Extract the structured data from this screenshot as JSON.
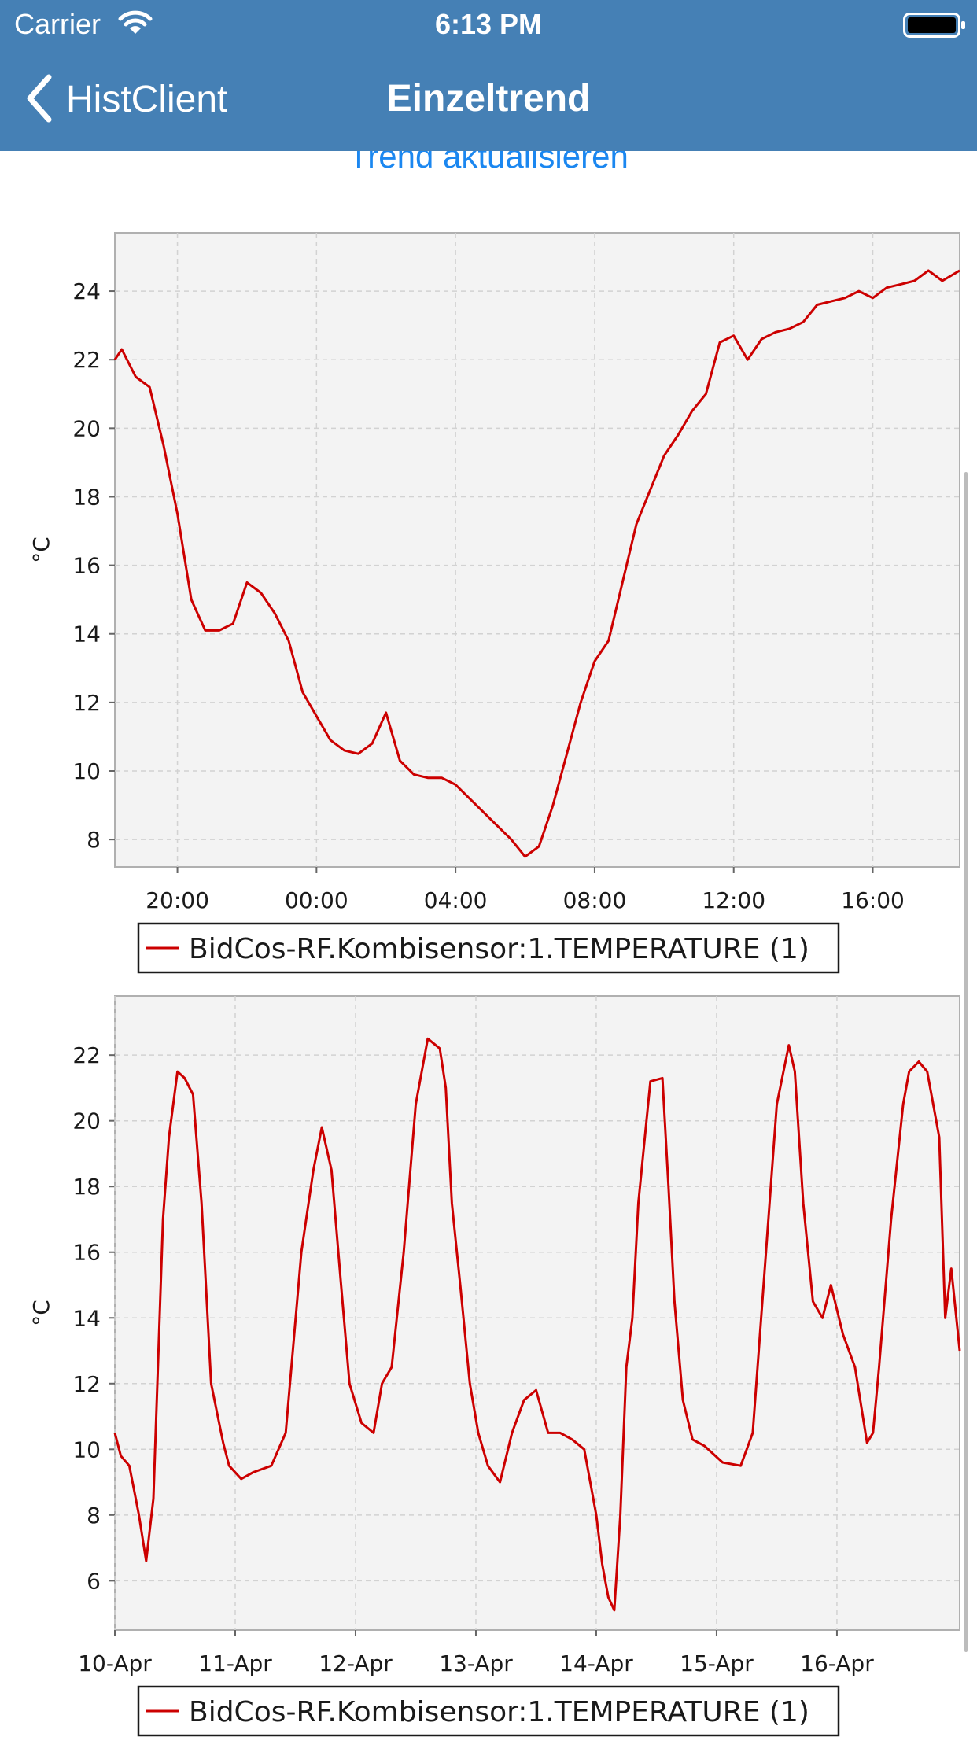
{
  "status_bar": {
    "carrier": "Carrier",
    "time": "6:13 PM"
  },
  "nav": {
    "back_label": "HistClient",
    "title": "Einzeltrend"
  },
  "refresh_label": "Trend aktualisieren",
  "colors": {
    "nav_bg": "#4580b5",
    "link": "#1b87f0",
    "series": "#cc0000",
    "plot_bg": "#f3f3f3"
  },
  "chart_data": [
    {
      "type": "line",
      "ylabel": "°C",
      "xlabel": "",
      "xtick_labels": [
        "20:00",
        "00:00",
        "04:00",
        "08:00",
        "12:00",
        "16:00"
      ],
      "xtick_hours": [
        20,
        24,
        28,
        32,
        36,
        40
      ],
      "xlim_hours": [
        18.2,
        42.5
      ],
      "ylim": [
        7.2,
        25.7
      ],
      "yticks": [
        8,
        10,
        12,
        14,
        16,
        18,
        20,
        22,
        24
      ],
      "grid": true,
      "legend": {
        "placement": "bottom",
        "label": "BidCos-RF.Kombisensor:1.TEMPERATURE (1)"
      },
      "series": [
        {
          "name": "BidCos-RF.Kombisensor:1.TEMPERATURE (1)",
          "x_hours": [
            18.2,
            18.4,
            18.8,
            19.2,
            19.6,
            20.0,
            20.4,
            20.8,
            21.2,
            21.6,
            22.0,
            22.4,
            22.8,
            23.2,
            23.6,
            24.0,
            24.4,
            24.8,
            25.2,
            25.6,
            26.0,
            26.4,
            26.6,
            26.8,
            27.2,
            27.6,
            28.0,
            28.4,
            28.8,
            29.2,
            29.6,
            30.0,
            30.4,
            30.8,
            31.2,
            31.6,
            32.0,
            32.4,
            32.8,
            33.2,
            33.6,
            34.0,
            34.4,
            34.8,
            35.2,
            35.6,
            36.0,
            36.4,
            36.8,
            37.2,
            37.6,
            38.0,
            38.4,
            38.8,
            39.2,
            39.6,
            40.0,
            40.4,
            40.8,
            41.2,
            41.6,
            42.0,
            42.5
          ],
          "values": [
            22.0,
            22.3,
            21.5,
            21.2,
            19.5,
            17.5,
            15.0,
            14.1,
            14.1,
            14.3,
            15.5,
            15.2,
            14.6,
            13.8,
            12.3,
            11.6,
            10.9,
            10.6,
            10.5,
            10.8,
            11.7,
            10.3,
            10.1,
            9.9,
            9.8,
            9.8,
            9.6,
            9.2,
            8.8,
            8.4,
            8.0,
            7.5,
            7.8,
            9.0,
            10.5,
            12.0,
            13.2,
            13.8,
            15.5,
            17.2,
            18.2,
            19.2,
            19.8,
            20.5,
            21.0,
            22.5,
            22.7,
            22.0,
            22.6,
            22.8,
            22.9,
            23.1,
            23.6,
            23.7,
            23.8,
            24.0,
            23.8,
            24.1,
            24.2,
            24.3,
            24.6,
            24.3,
            24.6
          ]
        }
      ]
    },
    {
      "type": "line",
      "ylabel": "°C",
      "xlabel": "",
      "xtick_labels": [
        "10-Apr",
        "11-Apr",
        "12-Apr",
        "13-Apr",
        "14-Apr",
        "15-Apr",
        "16-Apr"
      ],
      "xtick_days": [
        0,
        1,
        2,
        3,
        4,
        5,
        6
      ],
      "xlim_days": [
        0,
        7.02
      ],
      "ylim": [
        4.5,
        23.8
      ],
      "yticks": [
        6,
        8,
        10,
        12,
        14,
        16,
        18,
        20,
        22
      ],
      "grid": true,
      "legend": {
        "placement": "bottom",
        "label": "BidCos-RF.Kombisensor:1.TEMPERATURE (1)"
      },
      "series": [
        {
          "name": "BidCos-RF.Kombisensor:1.TEMPERATURE (1)",
          "x_days": [
            0.0,
            0.05,
            0.12,
            0.2,
            0.26,
            0.32,
            0.4,
            0.45,
            0.52,
            0.58,
            0.65,
            0.72,
            0.8,
            0.9,
            0.95,
            1.05,
            1.15,
            1.3,
            1.42,
            1.55,
            1.65,
            1.72,
            1.8,
            1.88,
            1.95,
            2.05,
            2.15,
            2.22,
            2.3,
            2.4,
            2.5,
            2.6,
            2.7,
            2.75,
            2.8,
            2.87,
            2.95,
            3.02,
            3.1,
            3.2,
            3.3,
            3.4,
            3.5,
            3.6,
            3.7,
            3.8,
            3.9,
            4.0,
            4.05,
            4.1,
            4.15,
            4.2,
            4.25,
            4.3,
            4.35,
            4.45,
            4.55,
            4.6,
            4.65,
            4.72,
            4.8,
            4.9,
            5.05,
            5.2,
            5.3,
            5.4,
            5.5,
            5.6,
            5.65,
            5.72,
            5.8,
            5.88,
            5.95,
            6.05,
            6.15,
            6.25,
            6.3,
            6.35,
            6.45,
            6.55,
            6.6,
            6.68,
            6.75,
            6.85,
            6.9,
            6.95,
            7.02
          ],
          "values": [
            10.5,
            9.8,
            9.5,
            8.0,
            6.6,
            8.5,
            17.0,
            19.5,
            21.5,
            21.3,
            20.8,
            17.5,
            12.0,
            10.2,
            9.5,
            9.1,
            9.3,
            9.5,
            10.5,
            16.0,
            18.5,
            19.8,
            18.5,
            15.0,
            12.0,
            10.8,
            10.5,
            12.0,
            12.5,
            16.0,
            20.5,
            22.5,
            22.2,
            21.0,
            17.5,
            15.0,
            12.0,
            10.5,
            9.5,
            9.0,
            10.5,
            11.5,
            11.8,
            10.5,
            10.5,
            10.3,
            10.0,
            8.0,
            6.5,
            5.5,
            5.1,
            8.0,
            12.5,
            14.0,
            17.5,
            21.2,
            21.3,
            18.0,
            14.5,
            11.5,
            10.3,
            10.1,
            9.6,
            9.5,
            10.5,
            15.5,
            20.5,
            22.3,
            21.5,
            17.5,
            14.5,
            14.0,
            15.0,
            13.5,
            12.5,
            10.2,
            10.5,
            12.5,
            17.0,
            20.5,
            21.5,
            21.8,
            21.5,
            19.5,
            14.0,
            15.5,
            13.0
          ]
        }
      ]
    }
  ]
}
